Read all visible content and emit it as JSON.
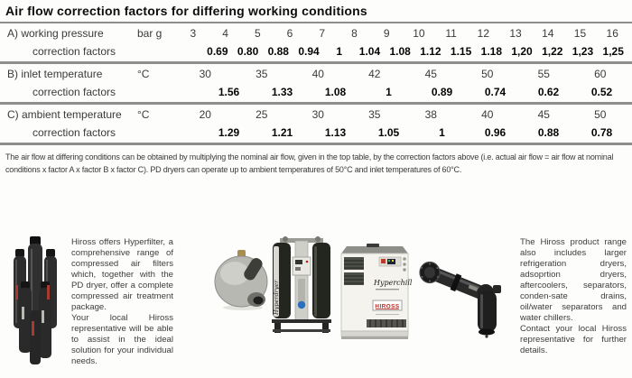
{
  "title": "Air flow correction factors for differing working conditions",
  "table": {
    "sections": [
      {
        "label": "A) working pressure",
        "unit": "bar g",
        "factors_label": "correction factors",
        "conditions": [
          "3",
          "4",
          "5",
          "6",
          "7",
          "8",
          "9",
          "10",
          "11",
          "12",
          "13",
          "14",
          "15",
          "16"
        ],
        "factors": [
          "0.69",
          "0.80",
          "0.88",
          "0.94",
          "1",
          "1.04",
          "1.08",
          "1.12",
          "1.15",
          "1.18",
          "1,20",
          "1,22",
          "1,23",
          "1,25"
        ]
      },
      {
        "label": "B) inlet temperature",
        "unit": "°C",
        "factors_label": "correction factors",
        "conditions": [
          "30",
          "35",
          "40",
          "42",
          "45",
          "50",
          "55",
          "60"
        ],
        "factors": [
          "1.56",
          "1.33",
          "1.08",
          "1",
          "0.89",
          "0.74",
          "0.62",
          "0.52"
        ]
      },
      {
        "label": "C) ambient temperature",
        "unit": "°C",
        "factors_label": "correction factors",
        "conditions": [
          "20",
          "25",
          "30",
          "35",
          "38",
          "40",
          "45",
          "50"
        ],
        "factors": [
          "1.29",
          "1.21",
          "1.13",
          "1.05",
          "1",
          "0.96",
          "0.88",
          "0.78"
        ]
      }
    ]
  },
  "note": "The air flow at differing conditions can be obtained by multiplying the nominal air flow, given in the top table, by the correction factors above (i.e. actual air flow = air flow at nominal conditions x factor A x factor B x factor C). PD dryers can operate up to  ambient temperatures of 50°C and inlet temperatures of 60°C.",
  "products": {
    "left_p1": "Hiross offers Hyperfilter, a comprehensive range of compressed air filters which, together with the PD dryer, offer a complete compressed air treatment package.",
    "left_p2": "Your local Hiross representative will be able to assist in the ideal solution for your individual needs.",
    "right_p1": "The Hiross product range also includes larger refrigeration dryers, adsoprtion dryers, aftercoolers, separators, conden-sate drains, oil/water separators and water chillers.",
    "right_p2": "Contact your local Hiross representative for further details.",
    "labels": {
      "hyperdryer": "Hyperdryer",
      "hyperchill": "Hyperchill",
      "hiross": "HIROSS"
    }
  },
  "colors": {
    "rule_grey": "#8e8e8e",
    "text_dark": "#0d0d0d",
    "brand_red": "#b32620",
    "valve_blue": "#2a6fbd"
  }
}
